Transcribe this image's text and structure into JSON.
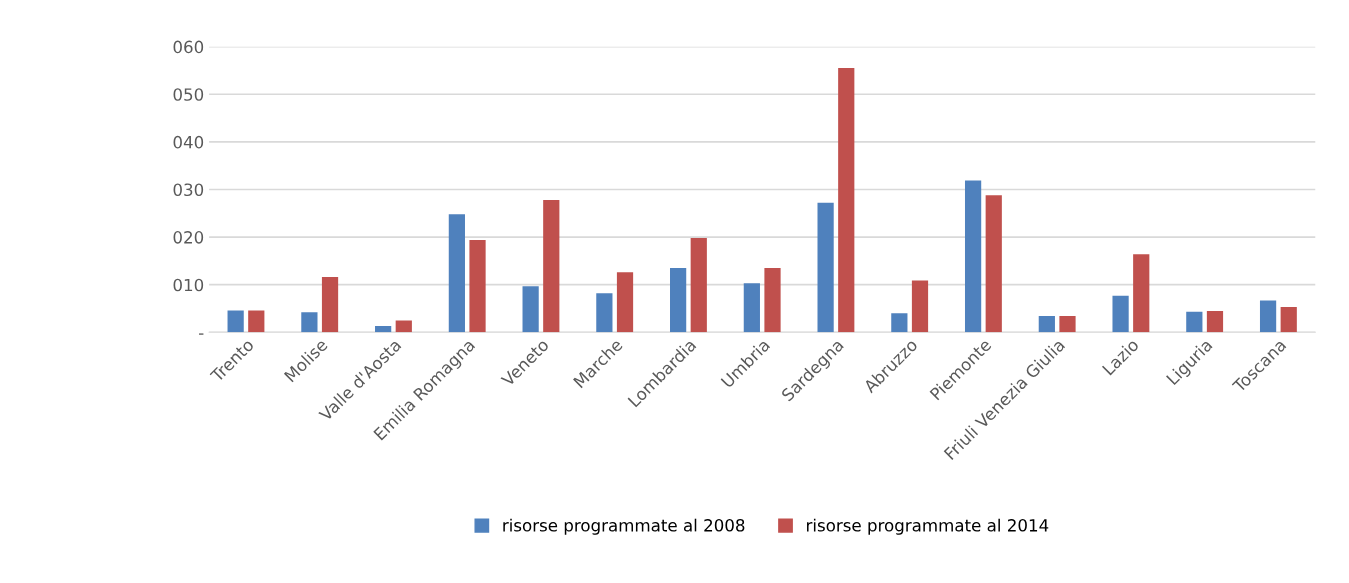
{
  "chart_data": {
    "type": "bar",
    "categories": [
      "Trento",
      "Molise",
      "Valle d'Aosta",
      "Emilia Romagna",
      "Veneto",
      "Marche",
      "Lombardia",
      "Umbria",
      "Sardegna",
      "Abruzzo",
      "Piemonte",
      "Friuli Venezia Giulia",
      "Lazio",
      "Liguria",
      "Toscana"
    ],
    "series": [
      {
        "name": "risorse programmate al 2008",
        "color": "#4f81bd",
        "values": [
          4.6,
          4.2,
          1.3,
          24.8,
          9.7,
          8.2,
          13.5,
          10.3,
          27.2,
          4.0,
          31.9,
          3.4,
          7.7,
          4.3,
          6.7
        ]
      },
      {
        "name": "risorse programmate al 2014",
        "color": "#c0504d",
        "values": [
          4.6,
          11.6,
          2.5,
          19.4,
          27.8,
          12.6,
          19.8,
          13.5,
          55.5,
          10.9,
          28.8,
          3.4,
          16.4,
          4.5,
          5.3
        ]
      }
    ],
    "ylim": [
      0,
      60
    ],
    "yticks": [
      {
        "value": 0,
        "label": "-"
      },
      {
        "value": 10,
        "label": "010"
      },
      {
        "value": 20,
        "label": "020"
      },
      {
        "value": 30,
        "label": "030"
      },
      {
        "value": 40,
        "label": "040"
      },
      {
        "value": 50,
        "label": "050"
      },
      {
        "value": 60,
        "label": "060"
      }
    ],
    "grid": "y",
    "legend": "bottom"
  }
}
